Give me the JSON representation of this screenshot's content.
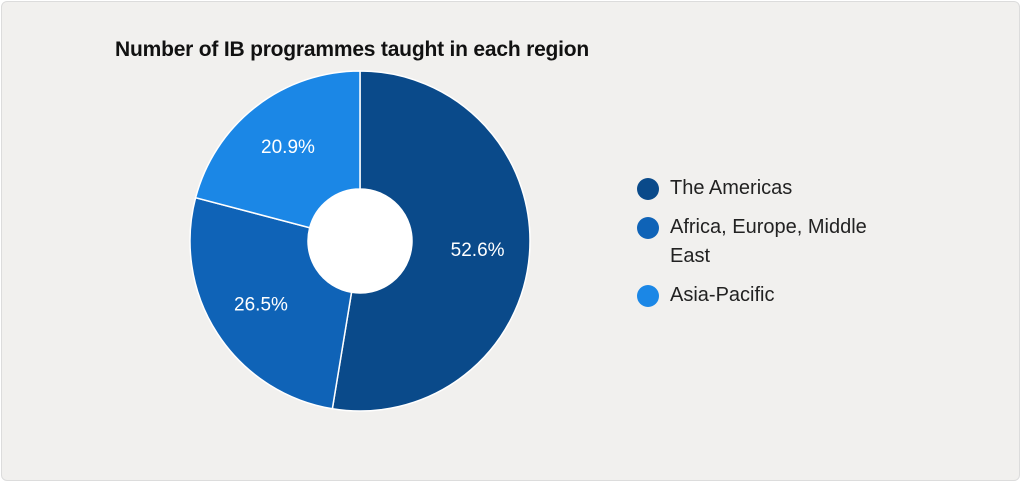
{
  "chart_data": {
    "type": "pie",
    "title": "Number of IB programmes taught in each region",
    "categories": [
      "The Americas",
      "Africa, Europe, Middle East",
      "Asia-Pacific"
    ],
    "values": [
      52.6,
      26.5,
      20.9
    ],
    "value_labels": [
      "52.6%",
      "26.5%",
      "20.9%"
    ],
    "colors": [
      "#0a4a8a",
      "#0f63b7",
      "#1b87e6"
    ],
    "donut": true,
    "start_angle": "12 o'clock",
    "direction": "clockwise",
    "legend_position": "right"
  }
}
